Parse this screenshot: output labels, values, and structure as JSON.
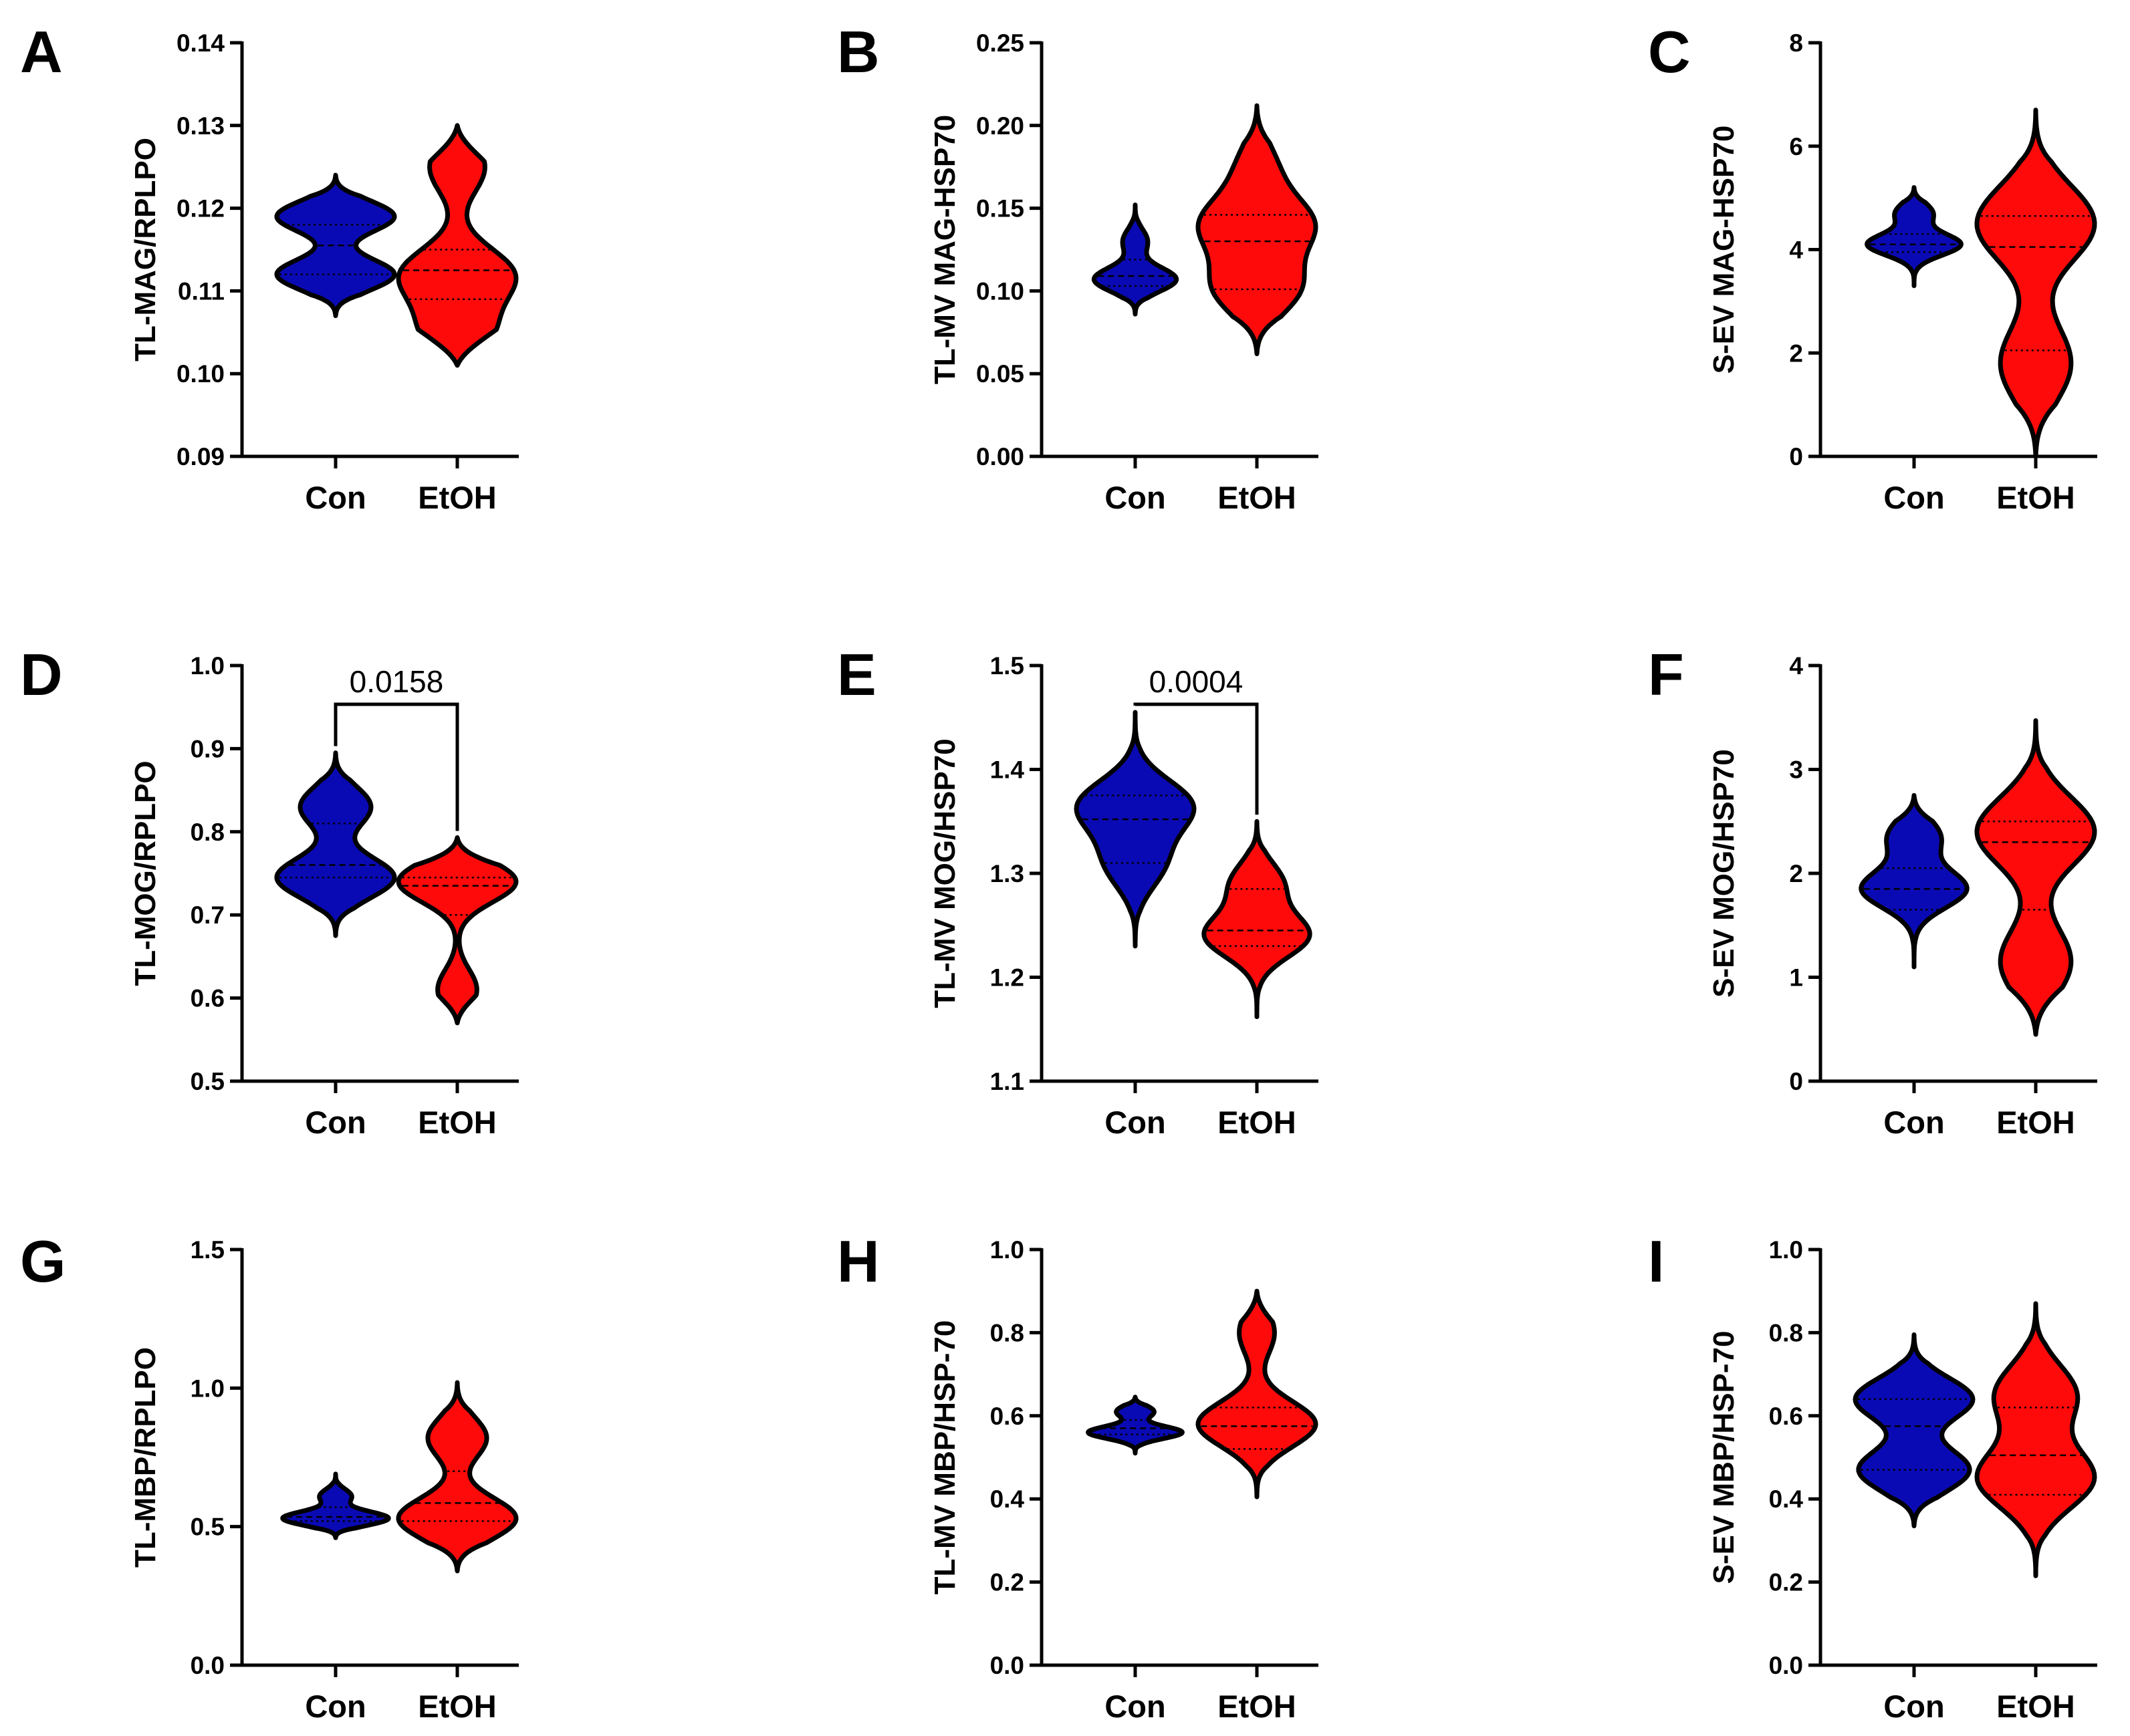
{
  "colors": {
    "con": "#0a0ab4",
    "etoh": "#ff0a0a",
    "outline": "#000000",
    "axis": "#000000"
  },
  "chart_data": [
    {
      "panel": "A",
      "type": "violin",
      "ylabel": "TL-MAG/RPLPO",
      "categories": [
        "Con",
        "EtOH"
      ],
      "ylim": [
        0.09,
        0.14
      ],
      "yticks": [
        "0.09",
        "0.10",
        "0.11",
        "0.12",
        "0.13",
        "0.14"
      ],
      "series": [
        {
          "name": "Con",
          "color": "#0a0ab4",
          "range": [
            0.107,
            0.124
          ],
          "modes": [
            [
              0.119,
              0.6
            ],
            [
              0.112,
              0.6
            ]
          ],
          "median": 0.1155,
          "q1": 0.112,
          "q3": 0.118,
          "maxhw": 0.5
        },
        {
          "name": "EtOH",
          "color": "#ff0a0a",
          "range": [
            0.101,
            0.13
          ],
          "modes": [
            [
              0.125,
              0.25
            ],
            [
              0.112,
              0.5
            ],
            [
              0.105,
              0.3
            ]
          ],
          "median": 0.1125,
          "q1": 0.109,
          "q3": 0.115,
          "maxhw": 0.5
        }
      ]
    },
    {
      "panel": "B",
      "type": "violin",
      "ylabel": "TL-MV MAG-HSP70",
      "categories": [
        "Con",
        "EtOH"
      ],
      "ylim": [
        0.0,
        0.25
      ],
      "yticks": [
        "0.00",
        "0.05",
        "0.10",
        "0.15",
        "0.20",
        "0.25"
      ],
      "series": [
        {
          "name": "Con",
          "color": "#0a0ab4",
          "range": [
            0.086,
            0.152
          ],
          "modes": [
            [
              0.107,
              1.0
            ],
            [
              0.13,
              0.3
            ]
          ],
          "median": 0.109,
          "q1": 0.103,
          "q3": 0.119,
          "maxhw": 0.35
        },
        {
          "name": "EtOH",
          "color": "#ff0a0a",
          "range": [
            0.062,
            0.212
          ],
          "modes": [
            [
              0.102,
              0.7
            ],
            [
              0.14,
              0.9
            ],
            [
              0.175,
              0.3
            ]
          ],
          "median": 0.13,
          "q1": 0.101,
          "q3": 0.146,
          "maxhw": 0.5
        }
      ]
    },
    {
      "panel": "C",
      "type": "violin",
      "ylabel": "S-EV MAG-HSP70",
      "categories": [
        "Con",
        "EtOH"
      ],
      "ylim": [
        0,
        8
      ],
      "yticks": [
        "0",
        "2",
        "4",
        "6",
        "8"
      ],
      "series": [
        {
          "name": "Con",
          "color": "#0a0ab4",
          "range": [
            3.3,
            5.2
          ],
          "modes": [
            [
              4.1,
              1.0
            ],
            [
              4.7,
              0.4
            ]
          ],
          "median": 4.1,
          "q1": 3.95,
          "q3": 4.3,
          "maxhw": 0.4
        },
        {
          "name": "EtOH",
          "color": "#ff0a0a",
          "range": [
            0.0,
            6.7
          ],
          "modes": [
            [
              4.5,
              1.0
            ],
            [
              1.8,
              0.6
            ]
          ],
          "median": 4.05,
          "q1": 2.05,
          "q3": 4.65,
          "maxhw": 0.5
        }
      ]
    },
    {
      "panel": "D",
      "type": "violin",
      "ylabel": "TL-MOG/RPLPO",
      "categories": [
        "Con",
        "EtOH"
      ],
      "ylim": [
        0.5,
        1.0
      ],
      "yticks": [
        "0.5",
        "0.6",
        "0.7",
        "0.8",
        "0.9",
        "1.0"
      ],
      "significance": {
        "label": "0.0158"
      },
      "series": [
        {
          "name": "Con",
          "color": "#0a0ab4",
          "range": [
            0.675,
            0.895
          ],
          "modes": [
            [
              0.745,
              1.0
            ],
            [
              0.83,
              0.6
            ]
          ],
          "median": 0.76,
          "q1": 0.745,
          "q3": 0.81,
          "maxhw": 0.5
        },
        {
          "name": "EtOH",
          "color": "#ff0a0a",
          "range": [
            0.57,
            0.793
          ],
          "modes": [
            [
              0.74,
              0.9
            ],
            [
              0.61,
              0.3
            ]
          ],
          "median": 0.735,
          "q1": 0.7,
          "q3": 0.745,
          "maxhw": 0.5
        }
      ]
    },
    {
      "panel": "E",
      "type": "violin",
      "ylabel": "TL-MV MOG/HSP70",
      "categories": [
        "Con",
        "EtOH"
      ],
      "ylim": [
        1.1,
        1.5
      ],
      "yticks": [
        "1.1",
        "1.2",
        "1.3",
        "1.4",
        "1.5"
      ],
      "significance": {
        "label": "0.0004"
      },
      "series": [
        {
          "name": "Con",
          "color": "#0a0ab4",
          "range": [
            1.23,
            1.455
          ],
          "modes": [
            [
              1.365,
              1.0
            ],
            [
              1.31,
              0.5
            ]
          ],
          "median": 1.352,
          "q1": 1.31,
          "q3": 1.375,
          "maxhw": 0.5
        },
        {
          "name": "EtOH",
          "color": "#ff0a0a",
          "range": [
            1.162,
            1.35
          ],
          "modes": [
            [
              1.24,
              1.0
            ],
            [
              1.29,
              0.5
            ]
          ],
          "median": 1.245,
          "q1": 1.23,
          "q3": 1.285,
          "maxhw": 0.45
        }
      ]
    },
    {
      "panel": "F",
      "type": "violin",
      "ylabel": "S-EV MOG/HSP70",
      "categories": [
        "Con",
        "EtOH"
      ],
      "ylim": [
        0,
        4
      ],
      "yticks": [
        "0",
        "1",
        "2",
        "3",
        "4"
      ],
      "series": [
        {
          "name": "Con",
          "color": "#0a0ab4",
          "range": [
            1.1,
            2.75
          ],
          "modes": [
            [
              1.85,
              1.0
            ],
            [
              2.35,
              0.5
            ]
          ],
          "median": 1.85,
          "q1": 1.65,
          "q3": 2.05,
          "maxhw": 0.45
        },
        {
          "name": "EtOH",
          "color": "#ff0a0a",
          "range": [
            0.45,
            3.47
          ],
          "modes": [
            [
              2.4,
              1.0
            ],
            [
              1.15,
              0.6
            ]
          ],
          "median": 2.3,
          "q1": 1.65,
          "q3": 2.5,
          "maxhw": 0.5
        }
      ]
    },
    {
      "panel": "G",
      "type": "violin",
      "ylabel": "TL-MBP/RPLPO",
      "categories": [
        "Con",
        "EtOH"
      ],
      "ylim": [
        0.0,
        1.5
      ],
      "yticks": [
        "0.0",
        "0.5",
        "1.0",
        "1.5"
      ],
      "series": [
        {
          "name": "Con",
          "color": "#0a0ab4",
          "range": [
            0.46,
            0.69
          ],
          "modes": [
            [
              0.53,
              1.0
            ],
            [
              0.61,
              0.3
            ]
          ],
          "median": 0.535,
          "q1": 0.52,
          "q3": 0.57,
          "maxhw": 0.45
        },
        {
          "name": "EtOH",
          "color": "#ff0a0a",
          "range": [
            0.34,
            1.02
          ],
          "modes": [
            [
              0.53,
              1.0
            ],
            [
              0.82,
              0.5
            ]
          ],
          "median": 0.585,
          "q1": 0.52,
          "q3": 0.7,
          "maxhw": 0.5
        }
      ]
    },
    {
      "panel": "H",
      "type": "violin",
      "ylabel": "TL-MV MBP/HSP-70",
      "categories": [
        "Con",
        "EtOH"
      ],
      "ylim": [
        0.0,
        1.0
      ],
      "yticks": [
        "0.0",
        "0.2",
        "0.4",
        "0.6",
        "0.8",
        "1.0"
      ],
      "series": [
        {
          "name": "Con",
          "color": "#0a0ab4",
          "range": [
            0.51,
            0.645
          ],
          "modes": [
            [
              0.56,
              1.0
            ],
            [
              0.61,
              0.4
            ]
          ],
          "median": 0.57,
          "q1": 0.555,
          "q3": 0.59,
          "maxhw": 0.4
        },
        {
          "name": "EtOH",
          "color": "#ff0a0a",
          "range": [
            0.405,
            0.9
          ],
          "modes": [
            [
              0.58,
              1.0
            ],
            [
              0.8,
              0.3
            ]
          ],
          "median": 0.575,
          "q1": 0.52,
          "q3": 0.62,
          "maxhw": 0.5
        }
      ]
    },
    {
      "panel": "I",
      "type": "violin",
      "ylabel": "S-EV MBP/HSP-70",
      "categories": [
        "Con",
        "EtOH"
      ],
      "ylim": [
        0.0,
        1.0
      ],
      "yticks": [
        "0.0",
        "0.2",
        "0.4",
        "0.6",
        "0.8",
        "1.0"
      ],
      "series": [
        {
          "name": "Con",
          "color": "#0a0ab4",
          "range": [
            0.335,
            0.795
          ],
          "modes": [
            [
              0.64,
              0.9
            ],
            [
              0.47,
              0.85
            ]
          ],
          "median": 0.575,
          "q1": 0.47,
          "q3": 0.64,
          "maxhw": 0.5
        },
        {
          "name": "EtOH",
          "color": "#ff0a0a",
          "range": [
            0.215,
            0.87
          ],
          "modes": [
            [
              0.65,
              0.7
            ],
            [
              0.45,
              1.0
            ]
          ],
          "median": 0.505,
          "q1": 0.41,
          "q3": 0.62,
          "maxhw": 0.5
        }
      ]
    }
  ]
}
